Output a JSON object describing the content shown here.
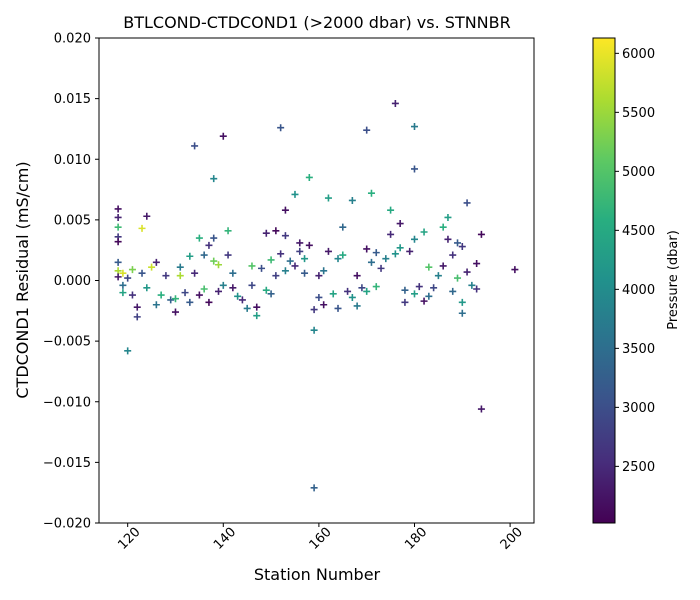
{
  "chart_data": {
    "type": "scatter",
    "marker": "plus",
    "title": "BTLCOND-CTDCOND1 (>2000 dbar) vs. STNNBR",
    "xlabel": "Station Number",
    "ylabel": "CTDCOND1 Residual (mS/cm)",
    "xlim": [
      114,
      205
    ],
    "ylim": [
      -0.02,
      0.02
    ],
    "x_ticks": [
      120,
      140,
      160,
      180,
      200
    ],
    "x_tick_labels": [
      "120",
      "140",
      "160",
      "180",
      "200"
    ],
    "y_ticks": [
      -0.02,
      -0.015,
      -0.01,
      -0.005,
      0.0,
      0.005,
      0.01,
      0.015,
      0.02
    ],
    "y_tick_labels": [
      "−0.020",
      "−0.015",
      "−0.010",
      "−0.005",
      "0.000",
      "0.005",
      "0.010",
      "0.015",
      "0.020"
    ],
    "grid": false,
    "colorbar": {
      "label": "Pressure (dbar)",
      "colormap": "viridis",
      "range": [
        2020,
        6130
      ],
      "ticks": [
        2500,
        3000,
        3500,
        4000,
        4500,
        5000,
        5500,
        6000
      ],
      "tick_labels": [
        "2500",
        "3000",
        "3500",
        "4000",
        "4500",
        "5000",
        "5500",
        "6000"
      ]
    },
    "points": [
      {
        "x": 118,
        "y": 0.0059,
        "p": 2200
      },
      {
        "x": 118,
        "y": 0.0052,
        "p": 2400
      },
      {
        "x": 118,
        "y": 0.0044,
        "p": 4800
      },
      {
        "x": 118,
        "y": 0.0036,
        "p": 2700
      },
      {
        "x": 118,
        "y": 0.0032,
        "p": 2100
      },
      {
        "x": 118,
        "y": 0.0015,
        "p": 3200
      },
      {
        "x": 118,
        "y": 0.0008,
        "p": 5600
      },
      {
        "x": 118,
        "y": 0.0003,
        "p": 2300
      },
      {
        "x": 119,
        "y": 0.0006,
        "p": 5900
      },
      {
        "x": 119,
        "y": -0.0004,
        "p": 3500
      },
      {
        "x": 119,
        "y": -0.001,
        "p": 4400
      },
      {
        "x": 120,
        "y": -0.0058,
        "p": 3900
      },
      {
        "x": 120,
        "y": 0.0002,
        "p": 2900
      },
      {
        "x": 121,
        "y": -0.0012,
        "p": 2600
      },
      {
        "x": 121,
        "y": 0.0009,
        "p": 5300
      },
      {
        "x": 122,
        "y": -0.003,
        "p": 2800
      },
      {
        "x": 122,
        "y": -0.0022,
        "p": 2300
      },
      {
        "x": 123,
        "y": 0.0043,
        "p": 5900
      },
      {
        "x": 123,
        "y": 0.0006,
        "p": 3100
      },
      {
        "x": 124,
        "y": 0.0053,
        "p": 2300
      },
      {
        "x": 124,
        "y": -0.0006,
        "p": 4200
      },
      {
        "x": 125,
        "y": 0.0011,
        "p": 5800
      },
      {
        "x": 126,
        "y": 0.0015,
        "p": 2400
      },
      {
        "x": 126,
        "y": -0.002,
        "p": 3600
      },
      {
        "x": 127,
        "y": -0.0012,
        "p": 4600
      },
      {
        "x": 128,
        "y": 0.0004,
        "p": 2700
      },
      {
        "x": 129,
        "y": -0.0016,
        "p": 3300
      },
      {
        "x": 130,
        "y": -0.0026,
        "p": 2200
      },
      {
        "x": 130,
        "y": -0.0015,
        "p": 4700
      },
      {
        "x": 131,
        "y": 0.0011,
        "p": 3700
      },
      {
        "x": 131,
        "y": 0.0004,
        "p": 5600
      },
      {
        "x": 132,
        "y": -0.001,
        "p": 2900
      },
      {
        "x": 133,
        "y": 0.002,
        "p": 4300
      },
      {
        "x": 133,
        "y": -0.0018,
        "p": 3200
      },
      {
        "x": 134,
        "y": 0.0111,
        "p": 3000
      },
      {
        "x": 134,
        "y": 0.0006,
        "p": 2500
      },
      {
        "x": 135,
        "y": 0.0035,
        "p": 4600
      },
      {
        "x": 135,
        "y": -0.0012,
        "p": 2200
      },
      {
        "x": 136,
        "y": 0.0021,
        "p": 3400
      },
      {
        "x": 136,
        "y": -0.0007,
        "p": 4900
      },
      {
        "x": 137,
        "y": 0.0029,
        "p": 2600
      },
      {
        "x": 137,
        "y": -0.0018,
        "p": 2100
      },
      {
        "x": 138,
        "y": 0.0084,
        "p": 3900
      },
      {
        "x": 138,
        "y": 0.0035,
        "p": 3100
      },
      {
        "x": 138,
        "y": 0.0016,
        "p": 5200
      },
      {
        "x": 139,
        "y": 0.0013,
        "p": 5500
      },
      {
        "x": 139,
        "y": -0.0009,
        "p": 2400
      },
      {
        "x": 140,
        "y": 0.0119,
        "p": 2200
      },
      {
        "x": 140,
        "y": -0.0004,
        "p": 3800
      },
      {
        "x": 141,
        "y": 0.0041,
        "p": 4700
      },
      {
        "x": 141,
        "y": 0.0021,
        "p": 2700
      },
      {
        "x": 142,
        "y": 0.0006,
        "p": 3500
      },
      {
        "x": 142,
        "y": -0.0006,
        "p": 2300
      },
      {
        "x": 143,
        "y": -0.0013,
        "p": 4100
      },
      {
        "x": 144,
        "y": -0.0016,
        "p": 2500
      },
      {
        "x": 145,
        "y": -0.0023,
        "p": 3700
      },
      {
        "x": 146,
        "y": 0.0012,
        "p": 5000
      },
      {
        "x": 146,
        "y": -0.0004,
        "p": 2900
      },
      {
        "x": 147,
        "y": -0.0029,
        "p": 4300
      },
      {
        "x": 147,
        "y": -0.0022,
        "p": 2200
      },
      {
        "x": 148,
        "y": 0.001,
        "p": 3000
      },
      {
        "x": 149,
        "y": 0.0039,
        "p": 2400
      },
      {
        "x": 149,
        "y": -0.0008,
        "p": 4500
      },
      {
        "x": 150,
        "y": 0.0017,
        "p": 4800
      },
      {
        "x": 150,
        "y": -0.0011,
        "p": 3300
      },
      {
        "x": 151,
        "y": 0.0041,
        "p": 2100
      },
      {
        "x": 151,
        "y": 0.0004,
        "p": 2800
      },
      {
        "x": 152,
        "y": 0.0126,
        "p": 3100
      },
      {
        "x": 152,
        "y": 0.0022,
        "p": 2600
      },
      {
        "x": 153,
        "y": 0.0058,
        "p": 2200
      },
      {
        "x": 153,
        "y": 0.0037,
        "p": 2700
      },
      {
        "x": 153,
        "y": 0.0008,
        "p": 3800
      },
      {
        "x": 154,
        "y": 0.0016,
        "p": 3500
      },
      {
        "x": 155,
        "y": 0.0071,
        "p": 4100
      },
      {
        "x": 155,
        "y": 0.0012,
        "p": 2500
      },
      {
        "x": 156,
        "y": 0.0031,
        "p": 2300
      },
      {
        "x": 156,
        "y": 0.0024,
        "p": 2800
      },
      {
        "x": 157,
        "y": 0.0018,
        "p": 4200
      },
      {
        "x": 157,
        "y": 0.0006,
        "p": 3200
      },
      {
        "x": 158,
        "y": 0.0085,
        "p": 4600
      },
      {
        "x": 158,
        "y": 0.0029,
        "p": 2200
      },
      {
        "x": 159,
        "y": -0.0041,
        "p": 3900
      },
      {
        "x": 159,
        "y": -0.0171,
        "p": 3300
      },
      {
        "x": 159,
        "y": -0.0024,
        "p": 2700
      },
      {
        "x": 160,
        "y": -0.0014,
        "p": 3000
      },
      {
        "x": 160,
        "y": 0.0004,
        "p": 2400
      },
      {
        "x": 161,
        "y": -0.002,
        "p": 2200
      },
      {
        "x": 161,
        "y": 0.0008,
        "p": 3600
      },
      {
        "x": 162,
        "y": 0.0068,
        "p": 4300
      },
      {
        "x": 162,
        "y": 0.0024,
        "p": 2300
      },
      {
        "x": 163,
        "y": -0.0011,
        "p": 4400
      },
      {
        "x": 164,
        "y": -0.0023,
        "p": 3100
      },
      {
        "x": 164,
        "y": 0.0018,
        "p": 3900
      },
      {
        "x": 165,
        "y": 0.0044,
        "p": 3400
      },
      {
        "x": 165,
        "y": 0.0021,
        "p": 4500
      },
      {
        "x": 166,
        "y": -0.0009,
        "p": 2600
      },
      {
        "x": 167,
        "y": 0.0066,
        "p": 3800
      },
      {
        "x": 167,
        "y": -0.0014,
        "p": 4100
      },
      {
        "x": 168,
        "y": 0.0004,
        "p": 2200
      },
      {
        "x": 168,
        "y": -0.0021,
        "p": 3700
      },
      {
        "x": 169,
        "y": -0.0006,
        "p": 2900
      },
      {
        "x": 170,
        "y": 0.0124,
        "p": 3000
      },
      {
        "x": 170,
        "y": 0.0026,
        "p": 2200
      },
      {
        "x": 170,
        "y": -0.0009,
        "p": 4400
      },
      {
        "x": 171,
        "y": 0.0072,
        "p": 4600
      },
      {
        "x": 171,
        "y": 0.0015,
        "p": 3500
      },
      {
        "x": 172,
        "y": 0.0023,
        "p": 3200
      },
      {
        "x": 172,
        "y": -0.0005,
        "p": 4700
      },
      {
        "x": 173,
        "y": 0.001,
        "p": 2700
      },
      {
        "x": 174,
        "y": 0.0018,
        "p": 3800
      },
      {
        "x": 175,
        "y": 0.0058,
        "p": 4500
      },
      {
        "x": 175,
        "y": 0.0038,
        "p": 2500
      },
      {
        "x": 176,
        "y": 0.0146,
        "p": 2400
      },
      {
        "x": 176,
        "y": 0.0022,
        "p": 4100
      },
      {
        "x": 177,
        "y": 0.0047,
        "p": 2300
      },
      {
        "x": 177,
        "y": 0.0027,
        "p": 4200
      },
      {
        "x": 178,
        "y": -0.0008,
        "p": 3300
      },
      {
        "x": 178,
        "y": -0.0018,
        "p": 2700
      },
      {
        "x": 179,
        "y": 0.0024,
        "p": 2400
      },
      {
        "x": 180,
        "y": 0.0127,
        "p": 3700
      },
      {
        "x": 180,
        "y": 0.0092,
        "p": 3100
      },
      {
        "x": 180,
        "y": 0.0034,
        "p": 3900
      },
      {
        "x": 180,
        "y": -0.0011,
        "p": 4300
      },
      {
        "x": 181,
        "y": -0.0005,
        "p": 2600
      },
      {
        "x": 182,
        "y": 0.004,
        "p": 4400
      },
      {
        "x": 182,
        "y": -0.0017,
        "p": 2200
      },
      {
        "x": 183,
        "y": 0.0011,
        "p": 5000
      },
      {
        "x": 183,
        "y": -0.0013,
        "p": 3500
      },
      {
        "x": 184,
        "y": -0.0006,
        "p": 2900
      },
      {
        "x": 185,
        "y": 0.0004,
        "p": 3800
      },
      {
        "x": 186,
        "y": 0.0044,
        "p": 4600
      },
      {
        "x": 186,
        "y": 0.0012,
        "p": 2300
      },
      {
        "x": 187,
        "y": 0.0052,
        "p": 4300
      },
      {
        "x": 187,
        "y": 0.0034,
        "p": 2400
      },
      {
        "x": 188,
        "y": 0.0021,
        "p": 2600
      },
      {
        "x": 188,
        "y": -0.0009,
        "p": 3400
      },
      {
        "x": 189,
        "y": 0.0031,
        "p": 3200
      },
      {
        "x": 189,
        "y": 0.0002,
        "p": 4900
      },
      {
        "x": 190,
        "y": -0.0027,
        "p": 3500
      },
      {
        "x": 190,
        "y": -0.0018,
        "p": 4200
      },
      {
        "x": 190,
        "y": 0.0028,
        "p": 2700
      },
      {
        "x": 191,
        "y": 0.0064,
        "p": 3000
      },
      {
        "x": 191,
        "y": 0.0007,
        "p": 2400
      },
      {
        "x": 192,
        "y": -0.0004,
        "p": 3800
      },
      {
        "x": 193,
        "y": 0.0014,
        "p": 2200
      },
      {
        "x": 193,
        "y": -0.0007,
        "p": 2600
      },
      {
        "x": 194,
        "y": 0.0038,
        "p": 2100
      },
      {
        "x": 194,
        "y": -0.0106,
        "p": 2300
      },
      {
        "x": 201,
        "y": 0.0009,
        "p": 2200
      }
    ]
  }
}
